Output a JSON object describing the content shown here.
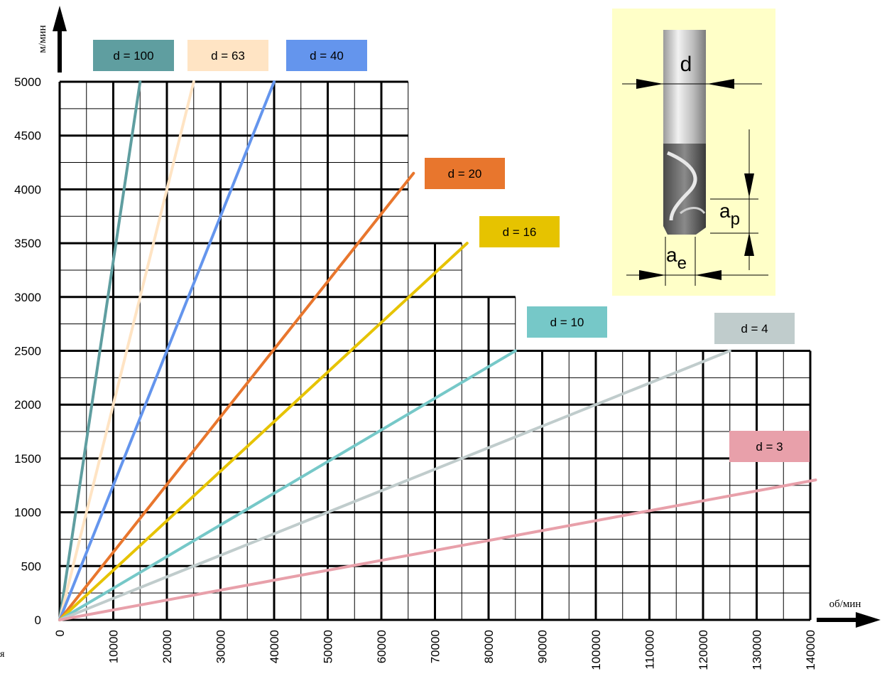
{
  "chart_data": {
    "type": "line",
    "xlabel": "об/мин",
    "ylabel": "м/мин",
    "xlim": [
      0,
      140000
    ],
    "ylim": [
      0,
      5000
    ],
    "x_ticks": [
      "0",
      "10000",
      "20000",
      "30000",
      "40000",
      "50000",
      "60000",
      "70000",
      "80000",
      "90000",
      "100000",
      "110000",
      "120000",
      "130000",
      "140000"
    ],
    "y_ticks": [
      "0",
      "500",
      "1000",
      "1500",
      "2000",
      "2500",
      "3000",
      "3500",
      "4000",
      "4500",
      "5000"
    ],
    "grid": true,
    "series": [
      {
        "name": "d = 100",
        "color": "#5f9ea0",
        "x": [
          0,
          15000
        ],
        "y": [
          0,
          5000
        ]
      },
      {
        "name": "d = 63",
        "color": "#ffe4c4",
        "x": [
          0,
          25000
        ],
        "y": [
          0,
          5000
        ]
      },
      {
        "name": "d = 40",
        "color": "#6495ed",
        "x": [
          0,
          40000
        ],
        "y": [
          0,
          5000
        ]
      },
      {
        "name": "d = 20",
        "color": "#e8762d",
        "x": [
          0,
          66000
        ],
        "y": [
          0,
          4150
        ]
      },
      {
        "name": "d = 16",
        "color": "#e6c300",
        "x": [
          0,
          76000
        ],
        "y": [
          0,
          3500
        ]
      },
      {
        "name": "d = 10",
        "color": "#76c8c8",
        "x": [
          0,
          85000
        ],
        "y": [
          0,
          2500
        ]
      },
      {
        "name": "d = 4",
        "color": "#c0cccc",
        "x": [
          0,
          125000
        ],
        "y": [
          0,
          2500
        ]
      },
      {
        "name": "d = 3",
        "color": "#e8a0aa",
        "x": [
          0,
          141000
        ],
        "y": [
          0,
          1300
        ]
      }
    ],
    "stepped_region": [
      {
        "x_to": 65000,
        "y_max": 5000
      },
      {
        "x_to": 75000,
        "y_max": 3500
      },
      {
        "x_to": 85000,
        "y_max": 3000
      },
      {
        "x_to": 140000,
        "y_max": 2500
      }
    ]
  },
  "inset": {
    "d_label": "d",
    "ap_main": "a",
    "ap_sub": "p",
    "ae_main": "a",
    "ae_sub": "e"
  },
  "stray_text": "я"
}
